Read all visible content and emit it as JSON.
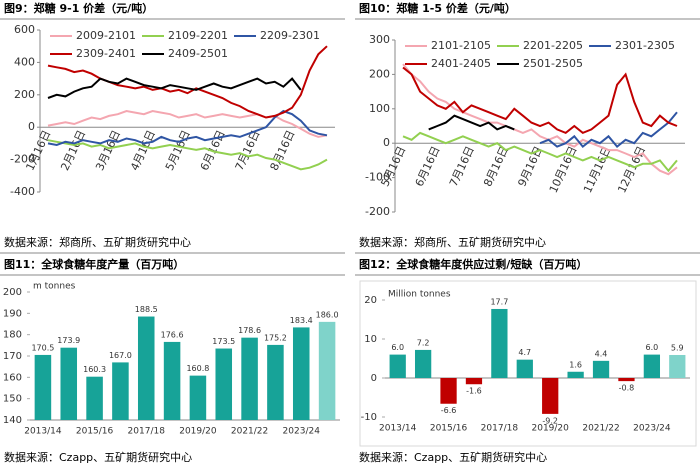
{
  "chart_data": [
    {
      "type": "line",
      "title": "图9：郑糖 9-1 价差（元/吨）",
      "source": "数据来源：郑商所、五矿期货研究中心",
      "categories": [
        "1月16日",
        null,
        null,
        null,
        "2月16日",
        null,
        null,
        null,
        "3月16日",
        null,
        null,
        null,
        "4月16日",
        null,
        null,
        null,
        "5月16日",
        null,
        null,
        null,
        "6月16日",
        null,
        null,
        null,
        "7月16日",
        null,
        null,
        null,
        "8月16日",
        null,
        null,
        null,
        null
      ],
      "ylim": [
        -400,
        600
      ],
      "yticks": [
        -400,
        -200,
        0,
        200,
        400,
        600
      ],
      "series": [
        {
          "name": "2009-2101",
          "color": "#f4a6b0",
          "values": [
            10,
            20,
            30,
            20,
            40,
            60,
            50,
            70,
            80,
            100,
            90,
            80,
            100,
            90,
            80,
            60,
            70,
            80,
            60,
            70,
            80,
            70,
            60,
            70,
            80,
            60,
            70,
            40,
            20,
            -10,
            -40,
            -60,
            -50
          ]
        },
        {
          "name": "2109-2201",
          "color": "#92d050",
          "values": [
            -80,
            -90,
            -100,
            -110,
            -100,
            -120,
            -110,
            -130,
            -120,
            -110,
            -100,
            -120,
            -130,
            -120,
            -110,
            -120,
            -130,
            -140,
            -130,
            -150,
            -160,
            -170,
            -160,
            -180,
            -170,
            -190,
            -200,
            -220,
            -240,
            -260,
            -250,
            -230,
            -200
          ]
        },
        {
          "name": "2209-2301",
          "color": "#2f55a4",
          "values": [
            -100,
            -110,
            -90,
            -100,
            -80,
            -90,
            -100,
            -80,
            -90,
            -70,
            -80,
            -100,
            -90,
            -60,
            -80,
            -90,
            -70,
            -60,
            -80,
            -70,
            -60,
            -50,
            -60,
            -40,
            -20,
            0,
            60,
            100,
            80,
            40,
            -20,
            -40,
            -50
          ]
        },
        {
          "name": "2309-2401",
          "color": "#c00000",
          "values": [
            380,
            370,
            360,
            340,
            350,
            330,
            300,
            280,
            260,
            250,
            240,
            250,
            230,
            240,
            220,
            230,
            210,
            240,
            220,
            200,
            180,
            150,
            130,
            100,
            80,
            60,
            70,
            90,
            120,
            200,
            350,
            450,
            500
          ]
        },
        {
          "name": "2409-2501",
          "color": "#000000",
          "values": [
            180,
            200,
            190,
            220,
            240,
            250,
            300,
            280,
            270,
            300,
            280,
            260,
            250,
            240,
            260,
            250,
            240,
            230,
            250,
            270,
            250,
            240,
            260,
            280,
            300,
            270,
            280,
            250,
            300,
            230,
            null,
            null,
            null
          ]
        }
      ]
    },
    {
      "type": "line",
      "title": "图10：郑糖 1-5 价差（元/吨）",
      "source": "数据来源：郑商所、五矿期货研究中心",
      "categories": [
        "5月16日",
        null,
        null,
        null,
        "6月16日",
        null,
        null,
        null,
        "7月16日",
        null,
        null,
        null,
        "8月16日",
        null,
        null,
        null,
        "9月16日",
        null,
        null,
        null,
        "10月16日",
        null,
        null,
        null,
        "11月16日",
        null,
        null,
        null,
        "12月16日",
        null,
        null,
        null,
        null
      ],
      "ylim": [
        -200,
        300
      ],
      "yticks": [
        -200,
        -100,
        0,
        100,
        200,
        300
      ],
      "series": [
        {
          "name": "2101-2105",
          "color": "#f4a6b0",
          "values": [
            230,
            200,
            180,
            150,
            130,
            120,
            100,
            90,
            80,
            70,
            60,
            60,
            50,
            40,
            30,
            40,
            20,
            10,
            20,
            0,
            -10,
            10,
            0,
            -10,
            -20,
            -20,
            -30,
            -40,
            -30,
            -60,
            -80,
            -90,
            -70
          ]
        },
        {
          "name": "2201-2205",
          "color": "#92d050",
          "values": [
            20,
            10,
            30,
            20,
            10,
            0,
            10,
            20,
            10,
            0,
            -10,
            0,
            -20,
            -10,
            -20,
            -30,
            -20,
            -30,
            -40,
            -30,
            -40,
            -50,
            -40,
            -50,
            -40,
            -50,
            -60,
            -70,
            -60,
            -60,
            -50,
            -80,
            -50
          ]
        },
        {
          "name": "2301-2305",
          "color": "#2f55a4",
          "values": [
            null,
            null,
            null,
            null,
            null,
            null,
            null,
            null,
            null,
            null,
            null,
            null,
            null,
            null,
            null,
            null,
            0,
            10,
            -10,
            0,
            20,
            -10,
            10,
            0,
            20,
            -10,
            10,
            0,
            30,
            20,
            40,
            60,
            90
          ]
        },
        {
          "name": "2401-2405",
          "color": "#c00000",
          "values": [
            220,
            200,
            150,
            130,
            110,
            100,
            120,
            90,
            110,
            100,
            90,
            80,
            70,
            100,
            80,
            60,
            50,
            60,
            40,
            30,
            50,
            30,
            40,
            60,
            80,
            170,
            200,
            120,
            60,
            50,
            80,
            60,
            50
          ]
        },
        {
          "name": "2501-2505",
          "color": "#000000",
          "values": [
            null,
            null,
            null,
            40,
            50,
            60,
            80,
            70,
            60,
            50,
            60,
            40,
            50,
            40,
            null,
            null,
            null,
            null,
            null,
            null,
            null,
            null,
            null,
            null,
            null,
            null,
            null,
            null,
            null,
            null,
            null,
            null,
            null
          ]
        }
      ]
    },
    {
      "type": "bar",
      "title": "图11：全球食糖年度产量（百万吨）",
      "source": "数据来源：Czapp、五矿期货研究中心",
      "unit": "m tonnes",
      "categories": [
        "2013/14",
        null,
        "2015/16",
        null,
        "2017/18",
        null,
        "2019/20",
        null,
        "2021/22",
        null,
        "2023/24",
        null
      ],
      "values": [
        170.5,
        173.9,
        160.3,
        167.0,
        188.5,
        176.6,
        160.8,
        173.5,
        178.6,
        175.2,
        183.4,
        186.0
      ],
      "value_labels": [
        "170.5",
        "173.9",
        "160.3",
        "167.0",
        "188.5",
        "176.6",
        "160.8",
        "173.5",
        "178.6",
        "175.2",
        "183.4",
        "186.0"
      ],
      "colors": [
        "#17a398",
        "#17a398",
        "#17a398",
        "#17a398",
        "#17a398",
        "#17a398",
        "#17a398",
        "#17a398",
        "#17a398",
        "#17a398",
        "#17a398",
        "#7fd3ca"
      ],
      "ylim": [
        140,
        200
      ],
      "yticks": [
        140,
        150,
        160,
        170,
        180,
        190,
        200
      ]
    },
    {
      "type": "bar",
      "title": "图12：全球食糖年度供应过剩/短缺（百万吨）",
      "source": "数据来源：Czapp、五矿期货研究中心",
      "unit": "Million tonnes",
      "categories": [
        "2013/14",
        null,
        "2015/16",
        null,
        "2017/18",
        null,
        "2019/20",
        null,
        "2021/22",
        null,
        "2023/24",
        null
      ],
      "values": [
        6.0,
        7.2,
        -6.6,
        -1.6,
        17.7,
        4.7,
        -9.2,
        1.6,
        4.4,
        -0.8,
        6.0,
        5.9
      ],
      "value_labels": [
        "6.0",
        "7.2",
        "-6.6",
        "-1.6",
        "17.7",
        "4.7",
        "-9.2",
        "1.6",
        "4.4",
        "-0.8",
        "6.0",
        "5.9"
      ],
      "colors": [
        "#17a398",
        "#17a398",
        "#c00000",
        "#c00000",
        "#17a398",
        "#17a398",
        "#c00000",
        "#17a398",
        "#17a398",
        "#c00000",
        "#17a398",
        "#7fd3ca"
      ],
      "ylim": [
        -10,
        20
      ],
      "yticks": [
        -10,
        0,
        10,
        20
      ]
    }
  ]
}
